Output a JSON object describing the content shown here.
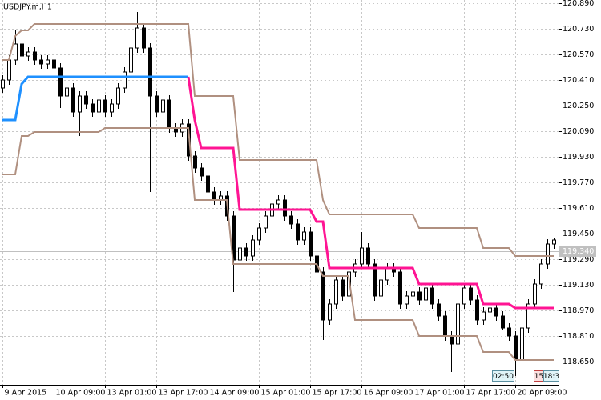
{
  "chart_data": {
    "type": "candlestick",
    "title": "USDJPY.m,H1",
    "categories": [
      "9 Apr 2015",
      null,
      null,
      null,
      null,
      null,
      null,
      null,
      "10 Apr 09:00",
      null,
      null,
      null,
      null,
      null,
      null,
      null,
      "13 Apr 01:00",
      null,
      null,
      null,
      null,
      null,
      null,
      null,
      "13 Apr 17:00",
      null,
      null,
      null,
      null,
      null,
      null,
      null,
      "14 Apr 09:00",
      null,
      null,
      null,
      null,
      null,
      null,
      null,
      "15 Apr 01:00",
      null,
      null,
      null,
      null,
      null,
      null,
      null,
      "15 Apr 17:00",
      null,
      null,
      null,
      null,
      null,
      null,
      null,
      "16 Apr 09:00",
      null,
      null,
      null,
      null,
      null,
      null,
      null,
      "17 Apr 01:00",
      null,
      null,
      null,
      null,
      null,
      null,
      null,
      "17 Apr 17:00",
      null,
      null,
      null,
      null,
      null,
      null,
      null,
      "20 Apr 09:00",
      null,
      null,
      null,
      null,
      null,
      null
    ],
    "open": [
      120.36,
      120.41,
      120.535,
      120.635,
      120.56,
      120.585,
      120.535,
      120.51,
      120.535,
      120.485,
      120.31,
      120.36,
      120.21,
      120.31,
      120.26,
      120.21,
      120.285,
      120.21,
      120.26,
      120.36,
      120.46,
      120.61,
      120.735,
      120.61,
      120.31,
      120.21,
      120.285,
      120.11,
      120.085,
      120.135,
      119.935,
      119.86,
      119.81,
      119.71,
      119.66,
      119.685,
      119.56,
      119.285,
      119.36,
      119.31,
      119.41,
      119.485,
      119.56,
      119.635,
      119.66,
      119.56,
      119.51,
      119.41,
      119.46,
      119.31,
      119.21,
      118.91,
      119.01,
      119.16,
      119.06,
      119.21,
      119.26,
      119.36,
      119.26,
      119.06,
      119.16,
      119.235,
      119.21,
      119.01,
      119.06,
      119.085,
      119.035,
      119.11,
      119.01,
      118.935,
      118.81,
      118.76,
      119.01,
      119.11,
      119.035,
      118.91,
      118.96,
      118.985,
      118.935,
      118.86,
      118.81,
      118.66,
      118.86,
      119.01,
      119.135,
      119.26,
      119.385
    ],
    "high": [
      120.44,
      120.565,
      120.72,
      120.665,
      120.615,
      120.615,
      120.565,
      120.565,
      120.565,
      120.515,
      120.39,
      120.39,
      120.34,
      120.34,
      120.29,
      120.315,
      120.315,
      120.29,
      120.39,
      120.49,
      120.64,
      120.835,
      120.765,
      120.64,
      120.34,
      120.315,
      120.315,
      120.14,
      120.165,
      120.165,
      119.965,
      119.89,
      119.84,
      119.74,
      119.715,
      119.715,
      119.59,
      119.39,
      119.39,
      119.44,
      119.515,
      119.59,
      119.735,
      119.69,
      119.69,
      119.59,
      119.54,
      119.49,
      119.49,
      119.34,
      119.24,
      119.04,
      119.19,
      119.19,
      119.24,
      119.29,
      119.46,
      119.39,
      119.29,
      119.19,
      119.265,
      119.265,
      119.24,
      119.09,
      119.115,
      119.115,
      119.14,
      119.14,
      119.04,
      118.965,
      118.84,
      119.04,
      119.14,
      119.14,
      119.065,
      118.99,
      119.015,
      119.015,
      118.965,
      118.89,
      118.84,
      118.89,
      119.04,
      119.165,
      119.29,
      119.415,
      119.42
    ],
    "low": [
      120.33,
      120.38,
      120.505,
      120.53,
      120.53,
      120.505,
      120.48,
      120.48,
      120.455,
      120.235,
      120.28,
      120.18,
      120.06,
      120.23,
      120.18,
      120.18,
      120.18,
      120.18,
      120.23,
      120.33,
      120.43,
      120.58,
      120.58,
      119.71,
      120.18,
      120.18,
      120.08,
      120.055,
      120.055,
      119.905,
      119.83,
      119.78,
      119.68,
      119.63,
      119.63,
      119.53,
      119.085,
      119.255,
      119.28,
      119.28,
      119.38,
      119.455,
      119.53,
      119.605,
      119.53,
      119.48,
      119.38,
      119.38,
      119.28,
      119.18,
      118.785,
      118.88,
      118.98,
      119.03,
      119.03,
      119.18,
      119.23,
      119.23,
      119.03,
      119.03,
      119.13,
      119.18,
      118.98,
      118.98,
      119.03,
      119.005,
      119.005,
      118.98,
      118.905,
      118.78,
      118.585,
      118.73,
      118.98,
      119.005,
      118.88,
      118.88,
      118.93,
      118.905,
      118.85,
      118.78,
      118.56,
      118.63,
      118.83,
      118.98,
      119.105,
      119.23,
      119.355
    ],
    "close": [
      120.41,
      120.535,
      120.635,
      120.56,
      120.585,
      120.535,
      120.51,
      120.535,
      120.485,
      120.31,
      120.36,
      120.21,
      120.31,
      120.26,
      120.21,
      120.285,
      120.21,
      120.26,
      120.36,
      120.46,
      120.61,
      120.735,
      120.61,
      120.31,
      120.21,
      120.285,
      120.11,
      120.085,
      120.135,
      119.935,
      119.86,
      119.81,
      119.71,
      119.66,
      119.685,
      119.56,
      119.285,
      119.36,
      119.31,
      119.41,
      119.485,
      119.56,
      119.635,
      119.66,
      119.56,
      119.51,
      119.41,
      119.46,
      119.31,
      119.21,
      118.91,
      119.01,
      119.16,
      119.06,
      119.21,
      119.26,
      119.36,
      119.26,
      119.06,
      119.16,
      119.235,
      119.21,
      119.01,
      119.06,
      119.085,
      119.035,
      119.11,
      119.01,
      118.935,
      118.81,
      118.76,
      119.01,
      119.11,
      119.035,
      118.91,
      118.96,
      118.985,
      118.935,
      118.86,
      118.81,
      118.66,
      118.86,
      119.01,
      119.135,
      119.26,
      119.385,
      119.41
    ],
    "up_color": "#ffffff",
    "down_color": "#000000",
    "series": [
      {
        "color": "#b09080",
        "width": 2,
        "values": [
          120.535,
          120.535,
          120.685,
          120.72,
          120.72,
          120.76,
          120.76,
          120.76,
          120.76,
          120.76,
          120.76,
          120.76,
          120.76,
          120.76,
          120.76,
          120.76,
          120.76,
          120.76,
          120.76,
          120.76,
          120.76,
          120.76,
          120.76,
          120.76,
          120.76,
          120.76,
          120.76,
          120.76,
          120.76,
          120.76,
          120.31,
          120.31,
          120.31,
          120.31,
          120.31,
          120.31,
          120.31,
          119.91,
          119.91,
          119.91,
          119.91,
          119.91,
          119.91,
          119.91,
          119.91,
          119.91,
          119.91,
          119.91,
          119.91,
          119.91,
          119.66,
          119.57,
          119.57,
          119.57,
          119.57,
          119.57,
          119.57,
          119.57,
          119.57,
          119.57,
          119.57,
          119.57,
          119.57,
          119.57,
          119.57,
          119.485,
          119.485,
          119.485,
          119.485,
          119.485,
          119.485,
          119.485,
          119.485,
          119.485,
          119.485,
          119.36,
          119.36,
          119.36,
          119.36,
          119.36,
          119.31,
          119.31,
          119.31,
          119.31,
          119.31,
          119.31,
          119.31
        ]
      },
      {
        "color": "#b09080",
        "width": 2,
        "values": [
          119.82,
          119.82,
          119.82,
          120.06,
          120.06,
          120.085,
          120.085,
          120.085,
          120.085,
          120.085,
          120.085,
          120.085,
          120.085,
          120.085,
          120.085,
          120.085,
          120.11,
          120.11,
          120.11,
          120.11,
          120.11,
          120.11,
          120.11,
          120.11,
          120.11,
          120.11,
          120.11,
          120.11,
          120.11,
          120.11,
          119.66,
          119.66,
          119.66,
          119.66,
          119.66,
          119.66,
          119.26,
          119.26,
          119.26,
          119.26,
          119.26,
          119.26,
          119.26,
          119.26,
          119.26,
          119.26,
          119.26,
          119.26,
          119.26,
          119.26,
          119.185,
          119.185,
          119.185,
          119.185,
          119.185,
          118.91,
          118.91,
          118.91,
          118.91,
          118.91,
          118.91,
          118.91,
          118.91,
          118.91,
          118.91,
          118.81,
          118.81,
          118.81,
          118.81,
          118.81,
          118.81,
          118.81,
          118.81,
          118.81,
          118.81,
          118.71,
          118.71,
          118.71,
          118.71,
          118.71,
          118.66,
          118.66,
          118.66,
          118.66,
          118.66,
          118.66,
          118.66
        ]
      },
      {
        "color": "#1e90ff",
        "width": 3,
        "values": [
          120.16,
          120.16,
          120.16,
          120.385,
          120.43,
          120.43,
          120.43,
          120.43,
          120.43,
          120.43,
          120.43,
          120.43,
          120.43,
          120.43,
          120.43,
          120.43,
          120.43,
          120.43,
          120.43,
          120.43,
          120.43,
          120.43,
          120.43,
          120.43,
          120.43,
          120.43,
          120.43,
          120.43,
          120.43,
          120.43,
          null,
          null,
          null,
          null,
          null,
          null,
          null,
          null,
          null,
          null,
          null,
          null,
          null,
          null,
          null,
          null,
          null,
          null,
          null,
          null,
          null,
          null,
          null,
          null,
          null,
          null,
          null,
          null,
          null,
          null,
          null,
          null,
          null,
          null,
          null,
          null,
          null,
          null,
          null,
          null,
          null,
          null,
          null,
          null,
          null,
          null,
          null,
          null,
          null,
          null,
          null,
          null,
          null,
          null,
          null,
          null,
          null
        ]
      },
      {
        "color": "#ff1493",
        "width": 3,
        "values": [
          null,
          null,
          null,
          null,
          null,
          null,
          null,
          null,
          null,
          null,
          null,
          null,
          null,
          null,
          null,
          null,
          null,
          null,
          null,
          null,
          null,
          null,
          null,
          null,
          null,
          null,
          null,
          null,
          null,
          120.43,
          120.16,
          119.985,
          119.985,
          119.985,
          119.985,
          119.985,
          119.985,
          119.6,
          119.6,
          119.6,
          119.6,
          119.6,
          119.6,
          119.6,
          119.6,
          119.6,
          119.6,
          119.6,
          119.6,
          119.525,
          119.525,
          119.235,
          119.235,
          119.235,
          119.235,
          119.235,
          119.235,
          119.235,
          119.235,
          119.235,
          119.235,
          119.235,
          119.235,
          119.235,
          119.235,
          119.135,
          119.135,
          119.135,
          119.135,
          119.135,
          119.135,
          119.135,
          119.135,
          119.135,
          119.135,
          119.01,
          119.01,
          119.01,
          119.01,
          119.01,
          118.985,
          118.985,
          118.985,
          118.985,
          118.985,
          118.985,
          118.985
        ]
      }
    ],
    "current_price": {
      "value": 119.34,
      "label": "119.340"
    },
    "ylim": [
      118.505,
      120.91
    ],
    "yticks": [
      {
        "value": 120.89,
        "label": "120.890"
      },
      {
        "value": 120.73,
        "label": "120.730"
      },
      {
        "value": 120.57,
        "label": "120.570"
      },
      {
        "value": 120.41,
        "label": "120.410"
      },
      {
        "value": 120.25,
        "label": "120.250"
      },
      {
        "value": 120.09,
        "label": "120.090"
      },
      {
        "value": 119.93,
        "label": "119.930"
      },
      {
        "value": 119.77,
        "label": "119.770"
      },
      {
        "value": 119.61,
        "label": "119.610"
      },
      {
        "value": 119.45,
        "label": "119.450"
      },
      {
        "value": 119.29,
        "label": "119.290"
      },
      {
        "value": 119.13,
        "label": "119.130"
      },
      {
        "value": 118.97,
        "label": "118.970"
      },
      {
        "value": 118.81,
        "label": "118.810"
      },
      {
        "value": 118.65,
        "label": "118.650"
      }
    ],
    "grid": true,
    "annotations": [
      "02:50",
      "15",
      "18:3"
    ]
  }
}
